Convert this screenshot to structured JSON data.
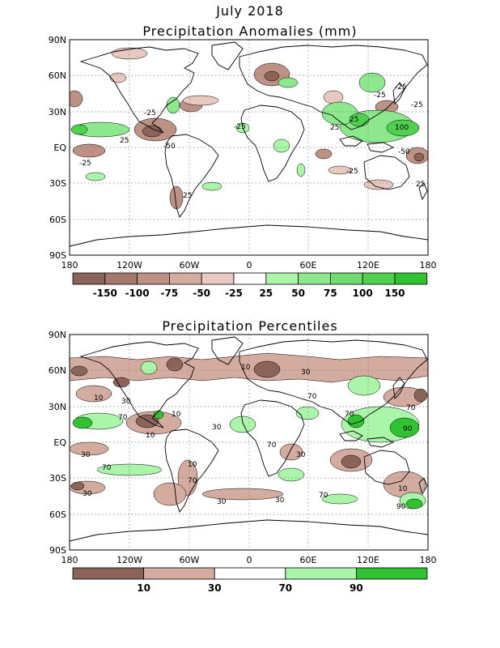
{
  "figure": {
    "title": "July 2018"
  },
  "panel_top": {
    "title": "Precipitation Anomalies (mm)",
    "lat_labels": [
      "90N",
      "60N",
      "30N",
      "EQ",
      "30S",
      "60S",
      "90S"
    ],
    "lon_labels": [
      "180",
      "120W",
      "60W",
      "0",
      "60E",
      "120E",
      "180"
    ],
    "colorbar": {
      "labels": [
        "-150",
        "-100",
        "-75",
        "-50",
        "-25",
        "25",
        "50",
        "75",
        "100",
        "150"
      ],
      "colors": [
        "#8b6459",
        "#a5786b",
        "#bd9285",
        "#d4ab9f",
        "#e8c9bf",
        "#ffffff",
        "#aaf5aa",
        "#8de88d",
        "#6edc6e",
        "#4fd14f",
        "#30c230"
      ]
    },
    "contour_labels": [
      "-25",
      "25",
      "-25",
      "-50",
      "25",
      "-25",
      "-25",
      "25",
      "25",
      "100",
      "-25",
      "-25",
      "-50",
      "25",
      "-25"
    ]
  },
  "panel_bottom": {
    "title": "Precipitation Percentiles",
    "lat_labels": [
      "90N",
      "60N",
      "30N",
      "EQ",
      "30S",
      "60S",
      "90S"
    ],
    "lon_labels": [
      "180",
      "120W",
      "60W",
      "0",
      "60E",
      "120E",
      "180"
    ],
    "colorbar": {
      "labels": [
        "10",
        "30",
        "70",
        "90"
      ],
      "colors": [
        "#8b6459",
        "#d4ab9f",
        "#ffffff",
        "#aaf5aa",
        "#30c230"
      ]
    },
    "contour_labels": [
      "10",
      "30",
      "10",
      "30",
      "70",
      "30",
      "10",
      "70",
      "10",
      "30",
      "70",
      "10",
      "30",
      "70",
      "70",
      "30",
      "90",
      "10",
      "70",
      "30",
      "70",
      "30",
      "70",
      "90"
    ]
  }
}
